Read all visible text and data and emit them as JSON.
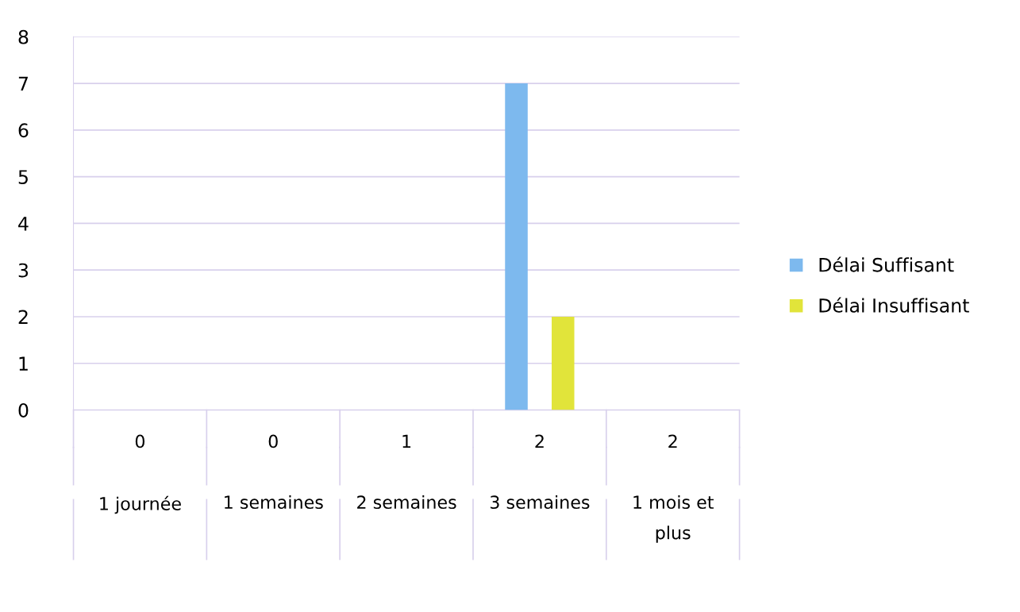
{
  "chart_data": {
    "type": "bar",
    "categories": [
      "0\n\n1 journée",
      "0\n\n1 semaines",
      "1\n\n2 semaines",
      "2\n\n3 semaines",
      "2\n\n1 mois et\nplus"
    ],
    "series": [
      {
        "name": "Délai Suffisant",
        "color": "#7db9ee",
        "values": [
          0,
          0,
          0,
          7,
          0
        ]
      },
      {
        "name": "Délai Insuffisant",
        "color": "#e1e43a",
        "values": [
          0,
          0,
          0,
          2,
          0
        ]
      }
    ],
    "ylim": [
      0,
      8
    ],
    "yticks": [
      0,
      1,
      2,
      3,
      4,
      5,
      6,
      7,
      8
    ],
    "grid": "y",
    "legend": "right"
  }
}
